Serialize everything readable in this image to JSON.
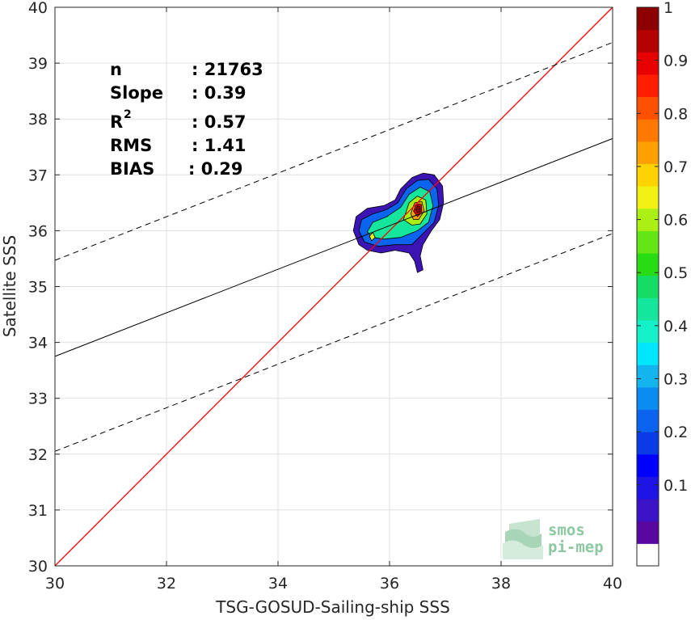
{
  "chart_data": {
    "type": "scatter",
    "xlabel": "TSG-GOSUD-Sailing-ship SSS",
    "ylabel": "Satellite SSS",
    "xlim": [
      30,
      40
    ],
    "ylim": [
      30,
      40
    ],
    "x_ticks": [
      30,
      32,
      34,
      36,
      38,
      40
    ],
    "y_ticks": [
      30,
      31,
      32,
      33,
      34,
      35,
      36,
      37,
      38,
      39,
      40
    ],
    "grid": true,
    "stats": [
      {
        "name": "n",
        "value": ": 21763"
      },
      {
        "name": "Slope",
        "value": ": 0.39"
      },
      {
        "name": "R",
        "sup": "2",
        "value": ": 0.57"
      },
      {
        "name": "RMS",
        "value": ": 1.41"
      },
      {
        "name": "BIAS",
        "value": ": 0.29"
      }
    ],
    "lines": {
      "identity": {
        "x": [
          30,
          40
        ],
        "y": [
          30,
          40
        ],
        "color": "#ff0000"
      },
      "fit": {
        "x": [
          30,
          40
        ],
        "y": [
          33.75,
          37.65
        ],
        "color": "#000000"
      },
      "fit_upper": {
        "x": [
          30,
          40
        ],
        "y": [
          35.47,
          39.37
        ],
        "color": "#000000",
        "dash": true
      },
      "fit_lower": {
        "x": [
          30,
          40
        ],
        "y": [
          32.05,
          35.95
        ],
        "color": "#000000",
        "dash": true
      }
    },
    "density_contours": [
      {
        "level": 0.05,
        "color": "#3c14b4",
        "points": [
          [
            35.35,
            36.0
          ],
          [
            35.4,
            36.25
          ],
          [
            35.6,
            36.4
          ],
          [
            35.9,
            36.45
          ],
          [
            36.1,
            36.55
          ],
          [
            36.2,
            36.75
          ],
          [
            36.4,
            36.95
          ],
          [
            36.6,
            37.03
          ],
          [
            36.8,
            37.0
          ],
          [
            36.95,
            36.8
          ],
          [
            36.97,
            36.5
          ],
          [
            36.9,
            36.2
          ],
          [
            36.75,
            36.0
          ],
          [
            36.6,
            35.75
          ],
          [
            36.55,
            35.55
          ],
          [
            36.6,
            35.3
          ],
          [
            36.5,
            35.25
          ],
          [
            36.45,
            35.45
          ],
          [
            36.35,
            35.6
          ],
          [
            36.1,
            35.65
          ],
          [
            35.85,
            35.6
          ],
          [
            35.6,
            35.65
          ],
          [
            35.45,
            35.75
          ]
        ]
      },
      {
        "level": 0.25,
        "color": "#0a64f0",
        "points": [
          [
            35.45,
            36.0
          ],
          [
            35.5,
            36.2
          ],
          [
            35.7,
            36.3
          ],
          [
            35.95,
            36.38
          ],
          [
            36.15,
            36.5
          ],
          [
            36.3,
            36.75
          ],
          [
            36.5,
            36.9
          ],
          [
            36.7,
            36.92
          ],
          [
            36.85,
            36.75
          ],
          [
            36.88,
            36.45
          ],
          [
            36.8,
            36.15
          ],
          [
            36.6,
            35.95
          ],
          [
            36.4,
            35.75
          ],
          [
            36.1,
            35.75
          ],
          [
            35.8,
            35.72
          ],
          [
            35.55,
            35.8
          ]
        ]
      },
      {
        "level": 0.45,
        "color": "#14e69b",
        "points": [
          [
            35.6,
            35.98
          ],
          [
            35.7,
            36.15
          ],
          [
            35.95,
            36.25
          ],
          [
            36.2,
            36.42
          ],
          [
            36.35,
            36.65
          ],
          [
            36.55,
            36.78
          ],
          [
            36.72,
            36.7
          ],
          [
            36.78,
            36.45
          ],
          [
            36.7,
            36.15
          ],
          [
            36.5,
            36.0
          ],
          [
            36.2,
            35.88
          ],
          [
            35.9,
            35.85
          ],
          [
            35.7,
            35.88
          ]
        ]
      },
      {
        "level": 0.6,
        "color": "#aaf014",
        "points": [
          [
            36.25,
            36.2
          ],
          [
            36.35,
            36.5
          ],
          [
            36.5,
            36.62
          ],
          [
            36.65,
            36.55
          ],
          [
            36.67,
            36.3
          ],
          [
            36.55,
            36.12
          ],
          [
            36.4,
            36.1
          ]
        ]
      },
      {
        "level": 0.75,
        "color": "#ffa000",
        "points": [
          [
            36.38,
            36.3
          ],
          [
            36.45,
            36.5
          ],
          [
            36.58,
            36.52
          ],
          [
            36.62,
            36.35
          ],
          [
            36.52,
            36.2
          ],
          [
            36.43,
            36.2
          ]
        ]
      },
      {
        "level": 0.9,
        "color": "#e60000",
        "points": [
          [
            36.43,
            36.35
          ],
          [
            36.48,
            36.48
          ],
          [
            36.57,
            36.47
          ],
          [
            36.58,
            36.33
          ],
          [
            36.5,
            36.25
          ]
        ]
      },
      {
        "level": 0.98,
        "color": "#8c0000",
        "points": [
          [
            36.47,
            36.37
          ],
          [
            36.5,
            36.45
          ],
          [
            36.55,
            36.43
          ],
          [
            36.55,
            36.34
          ],
          [
            36.5,
            36.32
          ]
        ]
      },
      {
        "level": 0.6,
        "color": "#f0f014",
        "points": [
          [
            35.64,
            35.9
          ],
          [
            35.7,
            35.97
          ],
          [
            35.74,
            35.88
          ],
          [
            35.68,
            35.82
          ]
        ]
      }
    ],
    "colorbar": {
      "colors": [
        "#ffffff",
        "#5a06a0",
        "#3c14c8",
        "#1e14e6",
        "#0000ff",
        "#0a3ce6",
        "#0a64f0",
        "#0a8cf0",
        "#14b4f0",
        "#00e6ff",
        "#14f0c8",
        "#14e69b",
        "#14dc64",
        "#28dc14",
        "#64e614",
        "#aaf014",
        "#f0f014",
        "#ffd200",
        "#ffa000",
        "#ff7800",
        "#ff5000",
        "#ff1e00",
        "#e60000",
        "#b40000",
        "#8c0000"
      ],
      "ticks": [
        "0.1",
        "0.2",
        "0.3",
        "0.4",
        "0.5",
        "0.6",
        "0.7",
        "0.8",
        "0.9",
        "1"
      ],
      "tick_values": [
        0.1,
        0.2,
        0.3,
        0.4,
        0.5,
        0.6,
        0.7,
        0.8,
        0.9,
        1.0
      ]
    },
    "logo": {
      "line1": "smos",
      "line2": "pi-mep",
      "color": "#8cc8a0"
    }
  }
}
